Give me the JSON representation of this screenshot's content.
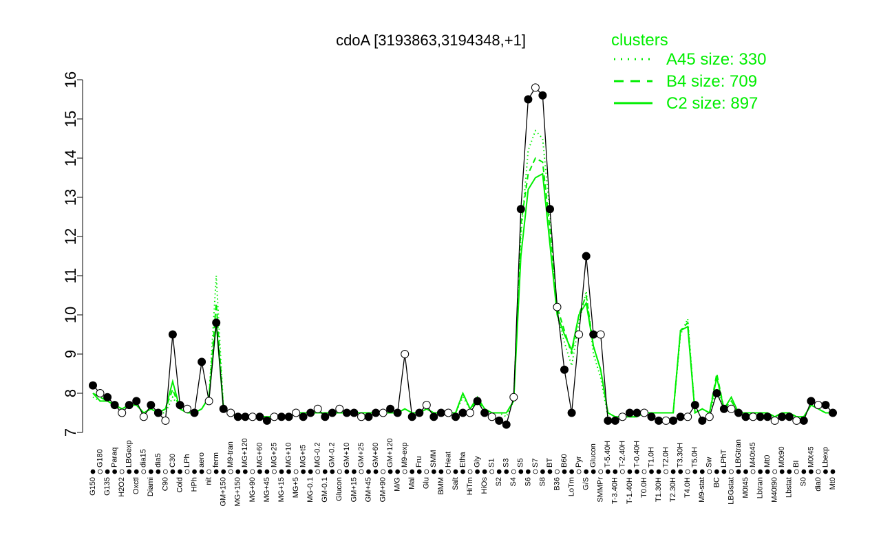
{
  "chart_data": {
    "type": "line",
    "title": "cdoA [3193863,3194348,+1]",
    "xlabel": "",
    "ylabel": "",
    "ylim": [
      7,
      16
    ],
    "yticks": [
      7,
      8,
      9,
      10,
      11,
      12,
      13,
      14,
      15,
      16
    ],
    "x_tick_labels": [
      "G150",
      "G180",
      "G135",
      "Paraq",
      "H2O2",
      "LBGexp",
      "Oxctl",
      "dia15",
      "Diami",
      "dia5",
      "C90",
      "C30",
      "Cold",
      "LPh",
      "HPh",
      "aero",
      "nit",
      "ferm",
      "GM+150",
      "M9-tran",
      "MG+150",
      "MG+120",
      "MG+90",
      "MG+60",
      "MG+45",
      "MG+25",
      "MG+15",
      "MG+10",
      "MG+5",
      "MG+t5",
      "MG-0.1",
      "MG-0.2",
      "GM-0.1",
      "GM-0.2",
      "Glucon",
      "GM+10",
      "GM+15",
      "GM+25",
      "GM+45",
      "GM+60",
      "GM+90",
      "GM+120",
      "M/G",
      "M9-exp",
      "Mal",
      "Fru",
      "Glu",
      "SMM",
      "BMM",
      "Heat",
      "Salt",
      "Etha",
      "HiTm",
      "Gly",
      "HiOs",
      "S1",
      "S2",
      "S3",
      "S4",
      "S5",
      "S6",
      "S7",
      "S8",
      "BT",
      "B36",
      "B60",
      "LoTm",
      "Pyr",
      "G/S",
      "Glucon",
      "SMMPr",
      "T-5.40H",
      "T-3.40H",
      "T-2.40H",
      "T-1.40H",
      "T-0.40H",
      "T0.0H",
      "T1.0H",
      "T1.30H",
      "T2.0H",
      "T2.30H",
      "T3.30H",
      "T4.0H",
      "T5.0H",
      "M9-stat",
      "Sw",
      "BC",
      "LPhT",
      "LBGstat",
      "LBGtran",
      "M0t45",
      "M40t45",
      "Lbtran",
      "Mt0",
      "M40t90",
      "M0t90",
      "Lbstat",
      "BI",
      "S0",
      "M0t45",
      "dia0",
      "Lbexp",
      "Mt0"
    ],
    "series": [
      {
        "name": "A45 size: 330",
        "style": "dotted",
        "values": [
          7.9,
          7.8,
          7.8,
          7.7,
          7.6,
          7.7,
          7.7,
          7.5,
          7.6,
          7.5,
          7.5,
          7.9,
          7.6,
          7.5,
          7.5,
          7.6,
          7.9,
          11.0,
          7.6,
          7.5,
          7.4,
          7.4,
          7.4,
          7.4,
          7.4,
          7.4,
          7.4,
          7.4,
          7.5,
          7.5,
          7.5,
          7.5,
          7.5,
          7.5,
          7.5,
          7.5,
          7.5,
          7.5,
          7.5,
          7.5,
          7.5,
          7.5,
          7.5,
          7.6,
          7.5,
          7.5,
          7.6,
          7.5,
          7.5,
          7.5,
          7.5,
          7.9,
          7.6,
          7.8,
          7.6,
          7.5,
          7.5,
          7.4,
          7.8,
          12.0,
          14.2,
          14.7,
          14.5,
          12.6,
          10.0,
          9.3,
          8.7,
          9.8,
          10.6,
          9.0,
          8.4,
          7.4,
          7.3,
          7.4,
          7.4,
          7.4,
          7.5,
          7.5,
          7.5,
          7.5,
          7.5,
          9.5,
          9.9,
          7.5,
          7.6,
          7.5,
          8.1,
          7.6,
          7.7,
          7.5,
          7.5,
          7.4,
          7.5,
          7.5,
          7.4,
          7.5,
          7.5,
          7.4,
          7.4,
          7.7,
          7.6,
          7.5,
          7.5
        ]
      },
      {
        "name": "B4 size: 709",
        "style": "dashed",
        "values": [
          8.0,
          7.9,
          7.8,
          7.7,
          7.6,
          7.7,
          7.7,
          7.5,
          7.6,
          7.5,
          7.6,
          8.1,
          7.6,
          7.5,
          7.5,
          7.6,
          7.9,
          10.3,
          7.6,
          7.5,
          7.4,
          7.4,
          7.4,
          7.4,
          7.4,
          7.4,
          7.4,
          7.4,
          7.5,
          7.5,
          7.5,
          7.5,
          7.5,
          7.5,
          7.5,
          7.5,
          7.5,
          7.5,
          7.5,
          7.5,
          7.5,
          7.5,
          7.5,
          7.6,
          7.5,
          7.5,
          7.6,
          7.5,
          7.5,
          7.5,
          7.5,
          8.0,
          7.6,
          7.8,
          7.6,
          7.5,
          7.5,
          7.5,
          7.8,
          12.3,
          13.6,
          14.0,
          13.9,
          12.2,
          10.2,
          9.6,
          9.0,
          10.0,
          10.5,
          9.2,
          8.6,
          7.5,
          7.4,
          7.4,
          7.4,
          7.4,
          7.5,
          7.5,
          7.5,
          7.5,
          7.5,
          9.6,
          9.8,
          7.5,
          7.6,
          7.5,
          8.5,
          7.6,
          7.8,
          7.5,
          7.5,
          7.5,
          7.5,
          7.5,
          7.4,
          7.5,
          7.5,
          7.4,
          7.4,
          7.7,
          7.6,
          7.5,
          7.5
        ]
      },
      {
        "name": "C2 size: 897",
        "style": "solid",
        "values": [
          8.0,
          7.8,
          7.8,
          7.7,
          7.6,
          7.7,
          7.7,
          7.5,
          7.6,
          7.5,
          7.6,
          8.3,
          7.6,
          7.5,
          7.5,
          7.6,
          7.9,
          9.8,
          7.6,
          7.5,
          7.4,
          7.4,
          7.4,
          7.4,
          7.4,
          7.4,
          7.4,
          7.4,
          7.5,
          7.5,
          7.5,
          7.5,
          7.5,
          7.5,
          7.5,
          7.5,
          7.5,
          7.5,
          7.5,
          7.5,
          7.5,
          7.5,
          7.5,
          7.6,
          7.5,
          7.5,
          7.6,
          7.5,
          7.5,
          7.5,
          7.5,
          8.0,
          7.6,
          7.9,
          7.6,
          7.5,
          7.5,
          7.5,
          7.8,
          11.5,
          13.2,
          13.5,
          13.6,
          11.8,
          10.0,
          9.5,
          9.1,
          10.0,
          10.3,
          9.2,
          8.6,
          7.5,
          7.4,
          7.4,
          7.4,
          7.4,
          7.5,
          7.5,
          7.5,
          7.5,
          7.5,
          9.6,
          9.7,
          7.5,
          7.6,
          7.5,
          8.4,
          7.6,
          7.9,
          7.5,
          7.5,
          7.5,
          7.5,
          7.5,
          7.4,
          7.5,
          7.5,
          7.4,
          7.4,
          7.7,
          7.6,
          7.5,
          7.5
        ]
      },
      {
        "name": "",
        "style": "black-line-with-points",
        "values": [
          8.2,
          8.0,
          7.9,
          7.7,
          7.5,
          7.7,
          7.8,
          7.4,
          7.7,
          7.5,
          7.3,
          9.5,
          7.7,
          7.6,
          7.5,
          8.8,
          7.8,
          9.8,
          7.6,
          7.5,
          7.4,
          7.4,
          7.4,
          7.4,
          7.3,
          7.4,
          7.4,
          7.4,
          7.5,
          7.4,
          7.5,
          7.6,
          7.4,
          7.5,
          7.6,
          7.5,
          7.5,
          7.4,
          7.4,
          7.5,
          7.5,
          7.6,
          7.5,
          9.0,
          7.4,
          7.5,
          7.7,
          7.4,
          7.5,
          7.5,
          7.4,
          7.5,
          7.5,
          7.8,
          7.5,
          7.4,
          7.3,
          7.2,
          7.9,
          12.7,
          15.5,
          15.8,
          15.6,
          12.7,
          10.2,
          8.6,
          7.5,
          9.5,
          11.5,
          9.5,
          9.5,
          7.3,
          7.3,
          7.4,
          7.5,
          7.5,
          7.5,
          7.4,
          7.3,
          7.3,
          7.3,
          7.4,
          7.4,
          7.7,
          7.3,
          7.4,
          8.0,
          7.6,
          7.6,
          7.5,
          7.4,
          7.4,
          7.4,
          7.4,
          7.3,
          7.4,
          7.4,
          7.3,
          7.3,
          7.8,
          7.7,
          7.7,
          7.5
        ]
      }
    ],
    "legend": {
      "title": "clusters",
      "position": "top-right",
      "entries": [
        "A45 size: 330",
        "B4 size: 709",
        "C2 size: 897"
      ]
    },
    "grid": false,
    "colors": {
      "cluster": "#00ee00",
      "line": "#000000",
      "point_fill_light": "#ffffff",
      "point_fill_dark": "#000000"
    }
  }
}
